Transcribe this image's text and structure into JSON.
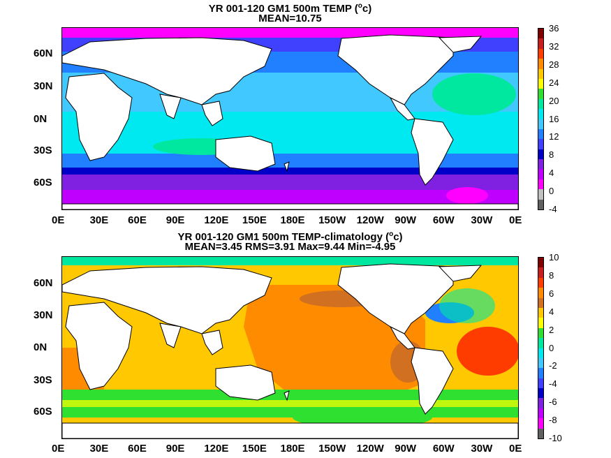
{
  "panels": [
    {
      "title_line1": "YR 001-120 GM1 500m TEMP (",
      "title_sup": "o",
      "title_unit": "c)",
      "title_line2": "MEAN=10.75",
      "colorbar": {
        "labels": [
          "36",
          "32",
          "28",
          "24",
          "20",
          "16",
          "12",
          "8",
          "4",
          "0",
          "-4"
        ],
        "colors": [
          "#7f0000",
          "#c81e1e",
          "#ff3c00",
          "#ff8c00",
          "#ffc800",
          "#ffff00",
          "#30e030",
          "#00e8a0",
          "#00e8f0",
          "#40c8ff",
          "#2080ff",
          "#4040ff",
          "#0000c8",
          "#8020e0",
          "#c000ff",
          "#ff00ff",
          "#c0c0c0",
          "#606060"
        ]
      }
    },
    {
      "title_line1": "YR 001-120 GM1 500m TEMP-climatology (",
      "title_sup": "o",
      "title_unit": "c)",
      "title_line2": "MEAN=3.45   RMS=3.91   Max=9.44   Min=-4.95",
      "colorbar": {
        "labels": [
          "10",
          "8",
          "6",
          "4",
          "2",
          "0",
          "-2",
          "-4",
          "-6",
          "-8",
          "-10"
        ],
        "colors": [
          "#7f0000",
          "#c81e1e",
          "#ff3c00",
          "#ff8c00",
          "#d07020",
          "#ffc800",
          "#ffff00",
          "#30e030",
          "#00e8a0",
          "#00e8f0",
          "#40c8ff",
          "#2080ff",
          "#4040ff",
          "#0000c8",
          "#8020e0",
          "#c000ff",
          "#ff00ff",
          "#606060"
        ]
      }
    }
  ],
  "axes": {
    "x_ticks": [
      "0E",
      "30E",
      "60E",
      "90E",
      "120E",
      "150E",
      "180E",
      "150W",
      "120W",
      "90W",
      "60W",
      "30W",
      "0E"
    ],
    "y_ticks": [
      "60N",
      "30N",
      "0N",
      "30S",
      "60S"
    ]
  },
  "colors": {
    "land": "#ffffff",
    "coast": "#000000"
  }
}
